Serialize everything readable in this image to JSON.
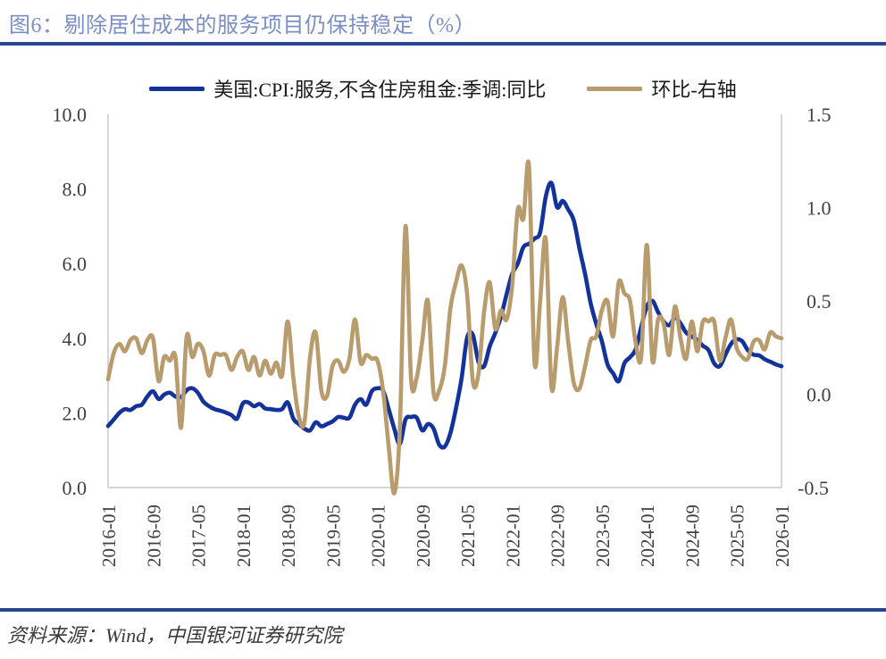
{
  "title": {
    "text": "图6：剔除居住成本的服务项目仍保持稳定（%）"
  },
  "legend": {
    "items": [
      {
        "label": "美国:CPI:服务,不含住房租金:季调:同比",
        "color": "#13339B"
      },
      {
        "label": "环比-右轴",
        "color": "#B89C6D"
      }
    ]
  },
  "footer": {
    "text": "资料来源：Wind，中国银河证券研究院"
  },
  "theme": {
    "title_color": "#7B8FC5",
    "divider_color": "#2B4590",
    "axis_text_color": "#404040",
    "axis_line_color": "#C8C8C8",
    "footer_color": "#3A3A3A"
  },
  "chart_data": {
    "type": "line",
    "title": "剔除居住成本的服务项目仍保持稳定（%）",
    "x_start": "2016-01",
    "x_end": "2026-01",
    "frequency": "monthly",
    "grid": false,
    "legend_position": "top",
    "x_ticks": [
      {
        "label": "2016-01",
        "month": 0
      },
      {
        "label": "2016-09",
        "month": 8
      },
      {
        "label": "2017-05",
        "month": 16
      },
      {
        "label": "2018-01",
        "month": 24
      },
      {
        "label": "2018-09",
        "month": 32
      },
      {
        "label": "2019-05",
        "month": 40
      },
      {
        "label": "2020-01",
        "month": 48
      },
      {
        "label": "2020-09",
        "month": 56
      },
      {
        "label": "2021-05",
        "month": 64
      },
      {
        "label": "2022-01",
        "month": 72
      },
      {
        "label": "2022-09",
        "month": 80
      },
      {
        "label": "2023-05",
        "month": 88
      },
      {
        "label": "2024-01",
        "month": 96
      },
      {
        "label": "2024-09",
        "month": 104
      },
      {
        "label": "2025-05",
        "month": 112
      },
      {
        "label": "2026-01",
        "month": 120
      }
    ],
    "left_axis": {
      "min": 0,
      "max": 10,
      "ticks": [
        {
          "label": "0.0",
          "value": 0
        },
        {
          "label": "2.0",
          "value": 2
        },
        {
          "label": "4.0",
          "value": 4
        },
        {
          "label": "6.0",
          "value": 6
        },
        {
          "label": "8.0",
          "value": 8
        },
        {
          "label": "10.0",
          "value": 10
        }
      ]
    },
    "right_axis": {
      "min": -0.5,
      "max": 1.5,
      "ticks": [
        {
          "label": "-0.5",
          "value": -0.5
        },
        {
          "label": "0.0",
          "value": 0
        },
        {
          "label": "0.5",
          "value": 0.5
        },
        {
          "label": "1.0",
          "value": 1
        },
        {
          "label": "1.5",
          "value": 1.5
        }
      ]
    },
    "series": [
      {
        "name": "美国:CPI:服务,不含住房租金:季调:同比",
        "axis": "left",
        "color": "#13339B",
        "values": [
          1.65,
          1.82,
          2.0,
          2.1,
          2.08,
          2.18,
          2.22,
          2.44,
          2.58,
          2.37,
          2.49,
          2.54,
          2.44,
          2.42,
          2.61,
          2.66,
          2.54,
          2.3,
          2.18,
          2.1,
          2.06,
          2.01,
          1.94,
          1.85,
          2.25,
          2.28,
          2.18,
          2.24,
          2.12,
          2.1,
          2.08,
          2.1,
          2.28,
          1.85,
          1.7,
          1.58,
          1.53,
          1.75,
          1.64,
          1.7,
          1.77,
          1.89,
          1.87,
          1.87,
          2.22,
          2.37,
          2.22,
          2.58,
          2.66,
          2.6,
          2.1,
          1.58,
          1.17,
          1.82,
          1.89,
          1.87,
          1.53,
          1.7,
          1.58,
          1.15,
          1.1,
          1.46,
          2.13,
          2.94,
          4.02,
          4.09,
          3.37,
          3.25,
          3.78,
          4.14,
          4.57,
          5.17,
          5.72,
          6.0,
          6.44,
          6.53,
          6.67,
          6.84,
          7.8,
          8.16,
          7.51,
          7.68,
          7.45,
          7.15,
          6.4,
          5.72,
          4.93,
          4.38,
          3.92,
          3.3,
          3.06,
          2.85,
          3.33,
          3.49,
          3.7,
          4.3,
          4.85,
          5.0,
          4.7,
          4.45,
          4.35,
          4.55,
          4.4,
          4.15,
          4.05,
          3.95,
          3.8,
          3.68,
          3.33,
          3.25,
          3.56,
          3.85,
          3.97,
          3.92,
          3.68,
          3.56,
          3.54,
          3.44,
          3.37,
          3.3,
          3.25
        ]
      },
      {
        "name": "环比-右轴",
        "axis": "right",
        "color": "#B89C6D",
        "values": [
          0.08,
          0.22,
          0.27,
          0.23,
          0.29,
          0.3,
          0.22,
          0.29,
          0.3,
          0.07,
          0.2,
          0.18,
          0.2,
          -0.18,
          0.31,
          0.2,
          0.27,
          0.23,
          0.1,
          0.21,
          0.21,
          0.21,
          0.13,
          0.2,
          0.23,
          0.13,
          0.2,
          0.1,
          0.18,
          0.11,
          0.17,
          0.1,
          0.39,
          0.09,
          -0.12,
          -0.15,
          0.2,
          0.33,
          0.02,
          -0.01,
          0.15,
          0.18,
          0.12,
          0.19,
          0.4,
          0.17,
          0.21,
          0.19,
          0.18,
          0.02,
          -0.28,
          -0.53,
          -0.18,
          0.9,
          0.08,
          0.09,
          0.29,
          0.5,
          0.01,
          0.02,
          0.15,
          0.46,
          0.6,
          0.69,
          0.53,
          0.07,
          0.11,
          0.44,
          0.6,
          0.35,
          0.45,
          0.4,
          0.58,
          0.99,
          0.94,
          1.22,
          0.17,
          0.5,
          0.83,
          0.04,
          0.25,
          0.52,
          0.28,
          0.06,
          0.03,
          0.15,
          0.29,
          0.31,
          0.45,
          0.5,
          0.31,
          0.6,
          0.54,
          0.5,
          0.28,
          0.2,
          0.8,
          0.18,
          0.4,
          0.38,
          0.21,
          0.47,
          0.3,
          0.19,
          0.39,
          0.23,
          0.39,
          0.39,
          0.39,
          0.18,
          0.3,
          0.4,
          0.25,
          0.2,
          0.19,
          0.28,
          0.29,
          0.24,
          0.33,
          0.31,
          0.3
        ]
      }
    ]
  }
}
